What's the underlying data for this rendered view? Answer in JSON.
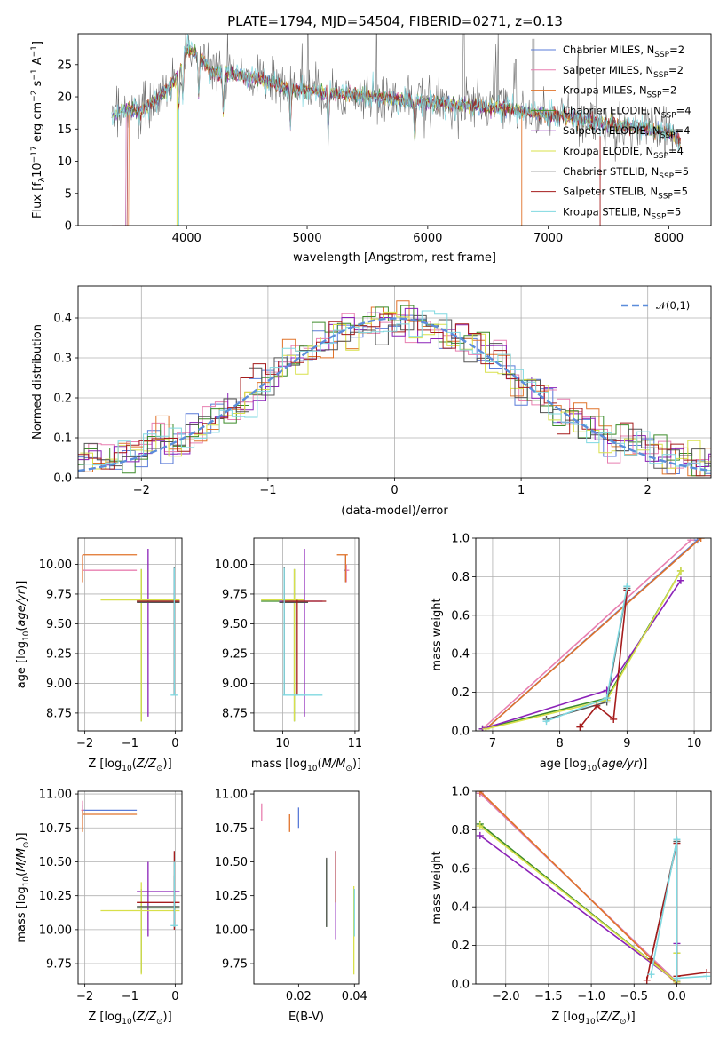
{
  "figure": {
    "title": "PLATE=1794, MJD=54504, FIBERID=0271, z=0.13"
  },
  "legend": {
    "spectrum": [
      {
        "label": "Chabrier MILES, N",
        "sub": "SSP",
        "suffix": "=2",
        "color": "#5a7bd8"
      },
      {
        "label": "Salpeter MILES, N",
        "sub": "SSP",
        "suffix": "=2",
        "color": "#e87fb0"
      },
      {
        "label": "Kroupa MILES, N",
        "sub": "SSP",
        "suffix": "=2",
        "color": "#e0732a"
      },
      {
        "label": "Chabrier ELODIE, N",
        "sub": "SSP",
        "suffix": "=4",
        "color": "#3d8c2a"
      },
      {
        "label": "Salpeter ELODIE, N",
        "sub": "SSP",
        "suffix": "=4",
        "color": "#8b22b8"
      },
      {
        "label": "Kroupa ELODIE, N",
        "sub": "SSP",
        "suffix": "=4",
        "color": "#d8e04a"
      },
      {
        "label": "Chabrier STELIB, N",
        "sub": "SSP",
        "suffix": "=5",
        "color": "#555555"
      },
      {
        "label": "Salpeter STELIB, N",
        "sub": "SSP",
        "suffix": "=5",
        "color": "#a51c1c"
      },
      {
        "label": "Kroupa STELIB, N",
        "sub": "SSP",
        "suffix": "=5",
        "color": "#7fd8e0"
      }
    ],
    "residual": "𝒩(0,1)"
  },
  "chart_data": [
    {
      "id": "spectrum",
      "type": "line",
      "title": "PLATE=1794, MJD=54504, FIBERID=0271, z=0.13",
      "xlabel": "wavelength [Angstrom, rest frame]",
      "ylabel": "Flux [f",
      "ylabel_parts": [
        "Flux [f",
        "λ",
        "10",
        "−17",
        " erg cm",
        "−2",
        " s",
        "−1",
        " A",
        "−1",
        "]"
      ],
      "xlim": [
        3100,
        8350
      ],
      "ylim": [
        0,
        29.8
      ],
      "xticks": [
        4000,
        5000,
        6000,
        7000,
        8000
      ],
      "yticks": [
        0,
        5,
        10,
        15,
        20,
        25
      ],
      "grid": false,
      "legend_position": "upper right",
      "data_profile": {
        "x": [
          3380,
          3450,
          3520,
          3600,
          3700,
          3800,
          3900,
          3950,
          4000,
          4100,
          4200,
          4300,
          4400,
          4600,
          4800,
          5000,
          5200,
          5400,
          5600,
          5800,
          6000,
          6200,
          6400,
          6500,
          6600,
          6800,
          7000,
          7200,
          7400,
          7600,
          7800,
          8000,
          8100
        ],
        "y": [
          16.8,
          17.8,
          18.2,
          17.5,
          18.8,
          20.5,
          22.5,
          24.5,
          27.5,
          26.5,
          24.0,
          23.5,
          23.5,
          22.8,
          21.5,
          21.0,
          20.5,
          20.2,
          20.0,
          19.5,
          19.0,
          18.8,
          18.6,
          18.2,
          18.5,
          17.8,
          17.2,
          16.8,
          16.0,
          15.5,
          15.0,
          14.3,
          13.2
        ]
      },
      "emission_spikes": [
        4340,
        4861,
        4959,
        5007,
        5577,
        5893,
        6300,
        6549,
        6563,
        6584,
        6717,
        6731,
        7246,
        7400
      ],
      "absorption_dips": [
        3934,
        3969,
        4101,
        4305,
        4861,
        5175,
        5893
      ]
    },
    {
      "id": "residuals",
      "type": "line",
      "xlabel": "(data-model)/error",
      "ylabel": "Normed distribution",
      "xlim": [
        -2.5,
        2.5
      ],
      "ylim": [
        0,
        0.48
      ],
      "xticks": [
        -2,
        -1,
        0,
        1,
        2
      ],
      "yticks": [
        0.0,
        0.1,
        0.2,
        0.3,
        0.4
      ],
      "grid": true,
      "legend_position": "upper right",
      "gaussian": {
        "mean": 0,
        "sigma": 1,
        "label": "𝒩(0,1)",
        "color": "#5b8ddb"
      }
    },
    {
      "id": "age-vs-Z",
      "type": "scatter",
      "xlabel": "Z [log10(Z/Z⊙)]",
      "ylabel": "age [log10(age/yr)]",
      "xlim": [
        -2.15,
        0.15
      ],
      "ylim": [
        8.6,
        10.22
      ],
      "xticks": [
        -2,
        -1,
        0
      ],
      "yticks": [
        8.75,
        9.0,
        9.25,
        9.5,
        9.75,
        10.0
      ],
      "grid": true,
      "crosses": [
        {
          "color": "#5a7bd8",
          "x": -0.02,
          "y": 9.95,
          "x0": -0.02,
          "x1": -0.02,
          "y0": 8.9,
          "y1": 9.97
        },
        {
          "color": "#e87fb0",
          "x": -2.05,
          "y": 9.95,
          "x0": -2.05,
          "x1": -0.85,
          "y0": 9.85,
          "y1": 10.08
        },
        {
          "color": "#e0732a",
          "x": -2.05,
          "y": 10.08,
          "x0": -2.05,
          "x1": -0.85,
          "y0": 9.85,
          "y1": 10.08
        },
        {
          "color": "#3d8c2a",
          "x": -0.75,
          "y": 9.69,
          "x0": -0.85,
          "x1": 0.1,
          "y0": 8.68,
          "y1": 9.96
        },
        {
          "color": "#8b22b8",
          "x": -0.6,
          "y": 9.69,
          "x0": -0.85,
          "x1": 0.1,
          "y0": 8.72,
          "y1": 10.13
        },
        {
          "color": "#d8e04a",
          "x": -0.75,
          "y": 9.7,
          "x0": -1.65,
          "x1": 0.1,
          "y0": 8.68,
          "y1": 9.96
        },
        {
          "color": "#555555",
          "x": -0.02,
          "y": 9.68,
          "x0": -0.85,
          "x1": 0.1,
          "y0": 8.9,
          "y1": 9.98
        },
        {
          "color": "#a51c1c",
          "x": -0.02,
          "y": 9.69,
          "x0": -0.85,
          "x1": 0.1,
          "y0": 8.9,
          "y1": 9.7
        },
        {
          "color": "#7fd8e0",
          "x": -0.02,
          "y": 8.9,
          "x0": -0.1,
          "x1": 0.05,
          "y0": 8.9,
          "y1": 9.97
        }
      ]
    },
    {
      "id": "age-vs-mass",
      "type": "scatter",
      "xlabel": "mass [log10(M/M⊙)]",
      "ylabel": "",
      "xlim": [
        9.6,
        11.05
      ],
      "ylim": [
        8.6,
        10.22
      ],
      "xticks": [
        10,
        11
      ],
      "yticks": [
        8.75,
        9.0,
        9.25,
        9.5,
        9.75,
        10.0
      ],
      "grid": true,
      "crosses": [
        {
          "color": "#5a7bd8",
          "x": 10.87,
          "y": 9.95,
          "x0": 10.85,
          "x1": 10.9,
          "y0": 9.85,
          "y1": 10.08
        },
        {
          "color": "#e87fb0",
          "x": 10.88,
          "y": 9.95,
          "x0": 10.86,
          "x1": 10.92,
          "y0": 9.85,
          "y1": 10.0
        },
        {
          "color": "#e0732a",
          "x": 10.87,
          "y": 10.08,
          "x0": 10.75,
          "x1": 10.9,
          "y0": 9.85,
          "y1": 10.08
        },
        {
          "color": "#3d8c2a",
          "x": 10.16,
          "y": 9.69,
          "x0": 9.7,
          "x1": 10.3,
          "y0": 8.68,
          "y1": 9.96
        },
        {
          "color": "#8b22b8",
          "x": 10.3,
          "y": 9.69,
          "x0": 9.95,
          "x1": 10.55,
          "y0": 8.72,
          "y1": 10.13
        },
        {
          "color": "#d8e04a",
          "x": 10.16,
          "y": 9.7,
          "x0": 9.7,
          "x1": 10.3,
          "y0": 8.68,
          "y1": 9.96
        },
        {
          "color": "#555555",
          "x": 10.02,
          "y": 9.68,
          "x0": 9.95,
          "x1": 10.35,
          "y0": 8.9,
          "y1": 9.98
        },
        {
          "color": "#a51c1c",
          "x": 10.2,
          "y": 9.69,
          "x0": 10.0,
          "x1": 10.6,
          "y0": 8.9,
          "y1": 9.7
        },
        {
          "color": "#7fd8e0",
          "x": 10.02,
          "y": 8.9,
          "x0": 10.0,
          "x1": 10.55,
          "y0": 8.9,
          "y1": 9.97
        }
      ]
    },
    {
      "id": "mass-weight-vs-age",
      "type": "line",
      "xlabel": "age [log10(age/yr)]",
      "ylabel": "mass weight",
      "xlim": [
        6.75,
        10.25
      ],
      "ylim": [
        0,
        1.0
      ],
      "xticks": [
        7,
        8,
        9,
        10
      ],
      "yticks": [
        0.0,
        0.2,
        0.4,
        0.6,
        0.8,
        1.0
      ],
      "grid": true,
      "series": [
        {
          "color": "#5a7bd8",
          "x": [
            6.9,
            10.05
          ],
          "y": [
            0.01,
            0.99
          ]
        },
        {
          "color": "#e87fb0",
          "x": [
            6.85,
            9.95
          ],
          "y": [
            0.01,
            0.99
          ]
        },
        {
          "color": "#e0732a",
          "x": [
            6.9,
            10.1
          ],
          "y": [
            0.01,
            1.0
          ]
        },
        {
          "color": "#3d8c2a",
          "x": [
            6.85,
            8.7,
            9.8
          ],
          "y": [
            0.01,
            0.17,
            0.83
          ]
        },
        {
          "color": "#8b22b8",
          "x": [
            6.85,
            8.7,
            9.8
          ],
          "y": [
            0.01,
            0.21,
            0.78
          ]
        },
        {
          "color": "#d8e04a",
          "x": [
            6.9,
            8.7,
            9.8
          ],
          "y": [
            0.01,
            0.16,
            0.83
          ]
        },
        {
          "color": "#555555",
          "x": [
            7.8,
            8.7,
            9.0
          ],
          "y": [
            0.06,
            0.15,
            0.74
          ]
        },
        {
          "color": "#a51c1c",
          "x": [
            8.3,
            8.55,
            8.8,
            9.0
          ],
          "y": [
            0.02,
            0.13,
            0.06,
            0.73
          ]
        },
        {
          "color": "#7fd8e0",
          "x": [
            7.8,
            8.7,
            9.0
          ],
          "y": [
            0.05,
            0.17,
            0.75
          ]
        }
      ]
    },
    {
      "id": "mass-vs-Z",
      "type": "scatter",
      "xlabel": "Z [log10(Z/Z⊙)]",
      "ylabel": "mass [log10(M/M⊙)]",
      "xlim": [
        -2.15,
        0.15
      ],
      "ylim": [
        9.6,
        11.02
      ],
      "xticks": [
        -2,
        -1,
        0
      ],
      "yticks": [
        9.75,
        10.0,
        10.25,
        10.5,
        10.75,
        11.0
      ],
      "grid": true,
      "crosses": [
        {
          "color": "#5a7bd8",
          "x": -2.05,
          "y": 10.88,
          "x0": -2.05,
          "x1": -0.85,
          "y0": 10.82,
          "y1": 10.92
        },
        {
          "color": "#e87fb0",
          "x": -2.05,
          "y": 10.88,
          "x0": -2.08,
          "x1": -2.02,
          "y0": 10.75,
          "y1": 10.95
        },
        {
          "color": "#e0732a",
          "x": -2.05,
          "y": 10.85,
          "x0": -2.05,
          "x1": -0.85,
          "y0": 10.72,
          "y1": 10.88
        },
        {
          "color": "#3d8c2a",
          "x": -0.75,
          "y": 10.16,
          "x0": -0.85,
          "x1": 0.1,
          "y0": 9.68,
          "y1": 10.3
        },
        {
          "color": "#8b22b8",
          "x": -0.6,
          "y": 10.28,
          "x0": -0.85,
          "x1": 0.1,
          "y0": 9.95,
          "y1": 10.5
        },
        {
          "color": "#d8e04a",
          "x": -0.75,
          "y": 10.14,
          "x0": -1.65,
          "x1": 0.1,
          "y0": 9.67,
          "y1": 10.35
        },
        {
          "color": "#555555",
          "x": -0.02,
          "y": 10.17,
          "x0": -0.85,
          "x1": 0.1,
          "y0": 10.02,
          "y1": 10.4
        },
        {
          "color": "#a51c1c",
          "x": -0.02,
          "y": 10.2,
          "x0": -0.85,
          "x1": 0.1,
          "y0": 10.0,
          "y1": 10.58
        },
        {
          "color": "#7fd8e0",
          "x": -0.02,
          "y": 10.03,
          "x0": -0.1,
          "x1": 0.05,
          "y0": 10.02,
          "y1": 10.5
        }
      ]
    },
    {
      "id": "mass-vs-EBV",
      "type": "scatter",
      "xlabel": "E(B-V)",
      "ylabel": "",
      "xlim": [
        0.004,
        0.0415
      ],
      "ylim": [
        9.6,
        11.02
      ],
      "xticks": [
        0.02,
        0.04
      ],
      "yticks": [
        9.75,
        10.0,
        10.25,
        10.5,
        10.75,
        11.0
      ],
      "grid": false,
      "crosses": [
        {
          "color": "#5a7bd8",
          "x": 0.02,
          "y": 10.82,
          "x0": 0.02,
          "x1": 0.02,
          "y0": 10.75,
          "y1": 10.9
        },
        {
          "color": "#e87fb0",
          "x": 0.0068,
          "y": 10.87,
          "x0": 0.0068,
          "x1": 0.0068,
          "y0": 10.8,
          "y1": 10.93
        },
        {
          "color": "#e0732a",
          "x": 0.0168,
          "y": 10.8,
          "x0": 0.0168,
          "x1": 0.0168,
          "y0": 10.72,
          "y1": 10.85
        },
        {
          "color": "#3d8c2a",
          "x": 0.03,
          "y": 10.2,
          "x0": 0.03,
          "x1": 0.03,
          "y0": 10.02,
          "y1": 10.52
        },
        {
          "color": "#8b22b8",
          "x": 0.0333,
          "y": 10.2,
          "x0": 0.0333,
          "x1": 0.0333,
          "y0": 9.93,
          "y1": 10.58
        },
        {
          "color": "#d8e04a",
          "x": 0.0398,
          "y": 10.0,
          "x0": 0.0398,
          "x1": 0.0398,
          "y0": 9.67,
          "y1": 10.32
        },
        {
          "color": "#555555",
          "x": 0.03,
          "y": 10.2,
          "x0": 0.03,
          "x1": 0.03,
          "y0": 10.02,
          "y1": 10.53
        },
        {
          "color": "#a51c1c",
          "x": 0.0333,
          "y": 10.4,
          "x0": 0.0333,
          "x1": 0.0333,
          "y0": 10.2,
          "y1": 10.58
        },
        {
          "color": "#7fd8e0",
          "x": 0.04,
          "y": 10.0,
          "x0": 0.04,
          "x1": 0.04,
          "y0": 9.95,
          "y1": 10.3
        }
      ]
    },
    {
      "id": "mass-weight-vs-Z",
      "type": "line",
      "xlabel": "Z [log10(Z/Z⊙)]",
      "ylabel": "mass weight",
      "xlim": [
        -2.35,
        0.4
      ],
      "ylim": [
        0,
        1.0
      ],
      "xticks": [
        -2.0,
        -1.5,
        -1.0,
        -0.5,
        0.0
      ],
      "yticks": [
        0.0,
        0.2,
        0.4,
        0.6,
        0.8,
        1.0
      ],
      "grid": true,
      "series": [
        {
          "color": "#5a7bd8",
          "x": [
            -2.3,
            0.0
          ],
          "y": [
            0.99,
            0.01
          ]
        },
        {
          "color": "#e87fb0",
          "x": [
            -2.3,
            0.0
          ],
          "y": [
            0.99,
            0.01
          ]
        },
        {
          "color": "#e0732a",
          "x": [
            -2.3,
            0.0
          ],
          "y": [
            1.0,
            0.0
          ]
        },
        {
          "color": "#3d8c2a",
          "x": [
            -2.3,
            0.0,
            0.0
          ],
          "y": [
            0.83,
            0.01,
            0.16
          ]
        },
        {
          "color": "#8b22b8",
          "x": [
            -2.3,
            0.0,
            0.0
          ],
          "y": [
            0.77,
            0.01,
            0.21
          ]
        },
        {
          "color": "#d8e04a",
          "x": [
            -2.3,
            0.0,
            0.0
          ],
          "y": [
            0.82,
            0.01,
            0.16
          ]
        },
        {
          "color": "#555555",
          "x": [
            -0.3,
            0.0,
            0.0
          ],
          "y": [
            0.13,
            0.74,
            0.02
          ]
        },
        {
          "color": "#a51c1c",
          "x": [
            -0.35,
            -0.3,
            0.0,
            0.0,
            0.35
          ],
          "y": [
            0.02,
            0.13,
            0.73,
            0.04,
            0.06
          ]
        },
        {
          "color": "#7fd8e0",
          "x": [
            -0.3,
            0.0,
            0.0,
            0.35
          ],
          "y": [
            0.05,
            0.75,
            0.03,
            0.04
          ]
        }
      ]
    }
  ]
}
